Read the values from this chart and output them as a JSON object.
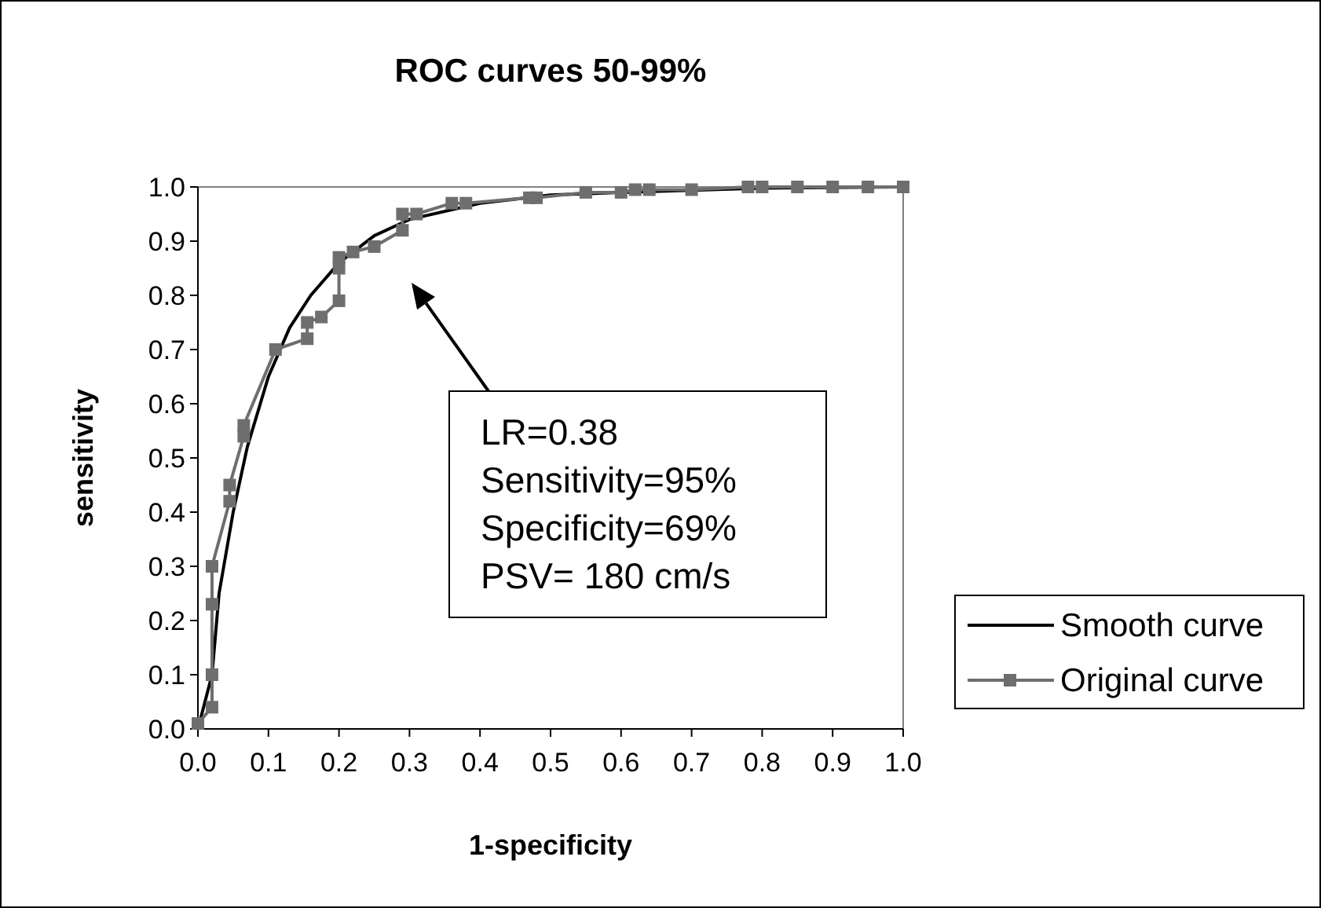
{
  "chart_data": {
    "type": "line",
    "title": "ROC curves 50-99%",
    "xlabel": "1-specificity",
    "ylabel": "sensitivity",
    "xlim": [
      0,
      1
    ],
    "ylim": [
      0,
      1
    ],
    "xticks": [
      {
        "value": 0,
        "label": "0.0"
      },
      {
        "value": 0.1,
        "label": "0.1"
      },
      {
        "value": 0.2,
        "label": "0.2"
      },
      {
        "value": 0.3,
        "label": "0.3"
      },
      {
        "value": 0.4,
        "label": "0.4"
      },
      {
        "value": 0.5,
        "label": "0.5"
      },
      {
        "value": 0.6,
        "label": "0.6"
      },
      {
        "value": 0.7,
        "label": "0.7"
      },
      {
        "value": 0.8,
        "label": "0.8"
      },
      {
        "value": 0.9,
        "label": "0.9"
      },
      {
        "value": 1,
        "label": "1.0"
      }
    ],
    "yticks": [
      {
        "value": 0,
        "label": "0.0"
      },
      {
        "value": 0.1,
        "label": "0.1"
      },
      {
        "value": 0.2,
        "label": "0.2"
      },
      {
        "value": 0.3,
        "label": "0.3"
      },
      {
        "value": 0.4,
        "label": "0.4"
      },
      {
        "value": 0.5,
        "label": "0.5"
      },
      {
        "value": 0.6,
        "label": "0.6"
      },
      {
        "value": 0.7,
        "label": "0.7"
      },
      {
        "value": 0.8,
        "label": "0.8"
      },
      {
        "value": 0.9,
        "label": "0.9"
      },
      {
        "value": 1,
        "label": "1.0"
      }
    ],
    "grid": false,
    "legend": "right",
    "series": [
      {
        "name": "Smooth curve",
        "color": "#000000",
        "marker": "none",
        "x": [
          0,
          0.02,
          0.03,
          0.05,
          0.07,
          0.1,
          0.13,
          0.16,
          0.2,
          0.25,
          0.3,
          0.4,
          0.5,
          0.6,
          0.8,
          1
        ],
        "values": [
          0,
          0.1,
          0.25,
          0.4,
          0.52,
          0.65,
          0.74,
          0.8,
          0.86,
          0.91,
          0.94,
          0.97,
          0.985,
          0.99,
          0.998,
          1
        ]
      },
      {
        "name": "Original curve",
        "color": "#6e6e6e",
        "marker": "square",
        "x": [
          0,
          0.02,
          0.02,
          0.02,
          0.02,
          0.045,
          0.045,
          0.065,
          0.065,
          0.11,
          0.155,
          0.155,
          0.175,
          0.2,
          0.2,
          0.2,
          0.22,
          0.25,
          0.29,
          0.29,
          0.31,
          0.36,
          0.38,
          0.47,
          0.48,
          0.55,
          0.6,
          0.62,
          0.64,
          0.7,
          0.78,
          0.8,
          0.85,
          0.9,
          0.95,
          1
        ],
        "values": [
          0.01,
          0.04,
          0.1,
          0.23,
          0.3,
          0.42,
          0.45,
          0.54,
          0.56,
          0.7,
          0.72,
          0.75,
          0.76,
          0.79,
          0.85,
          0.87,
          0.88,
          0.89,
          0.92,
          0.95,
          0.95,
          0.97,
          0.97,
          0.98,
          0.98,
          0.99,
          0.99,
          0.995,
          0.995,
          0.995,
          1,
          1,
          1,
          1,
          1,
          1
        ]
      }
    ],
    "annotations": [
      "LR=0.38\nSensitivity=95%\nSpecificity=69%\nPSV= 180 cm/s"
    ]
  }
}
